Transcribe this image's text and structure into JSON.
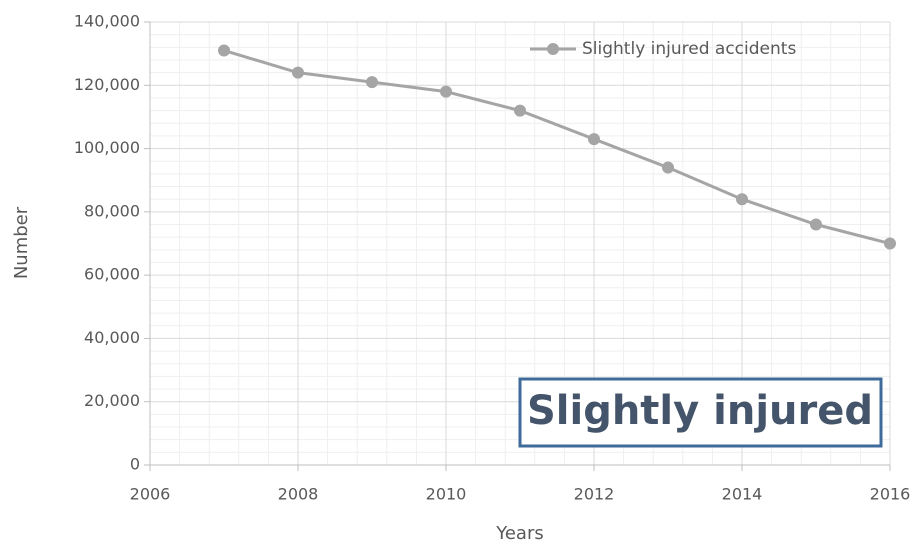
{
  "chart_data": {
    "type": "line",
    "x_label": "Years",
    "y_label": "Number",
    "x": [
      2007,
      2008,
      2009,
      2010,
      2011,
      2012,
      2013,
      2014,
      2015,
      2016
    ],
    "series": [
      {
        "name": "Slightly injured accidents",
        "color": "#a5a5a5",
        "values": [
          131000,
          124000,
          121000,
          118000,
          112000,
          103000,
          94000,
          84000,
          76000,
          70000
        ]
      }
    ],
    "xlim": [
      2006,
      2016
    ],
    "xticks": [
      2006,
      2008,
      2010,
      2012,
      2014,
      2016
    ],
    "ylim": [
      0,
      140000
    ],
    "yticks": [
      0,
      {
        "value": 20000,
        "label": "20,000"
      },
      {
        "value": 40000,
        "label": "40,000"
      },
      {
        "value": 60000,
        "label": "60,000"
      },
      {
        "value": 80000,
        "label": "80,000"
      },
      {
        "value": 100000,
        "label": "100,000"
      },
      {
        "value": 120000,
        "label": "120,000"
      },
      {
        "value": 140000,
        "label": "140,000"
      }
    ],
    "grid": true,
    "minor_grid": true,
    "legend": "top-right",
    "annotation": "Slightly injured"
  }
}
